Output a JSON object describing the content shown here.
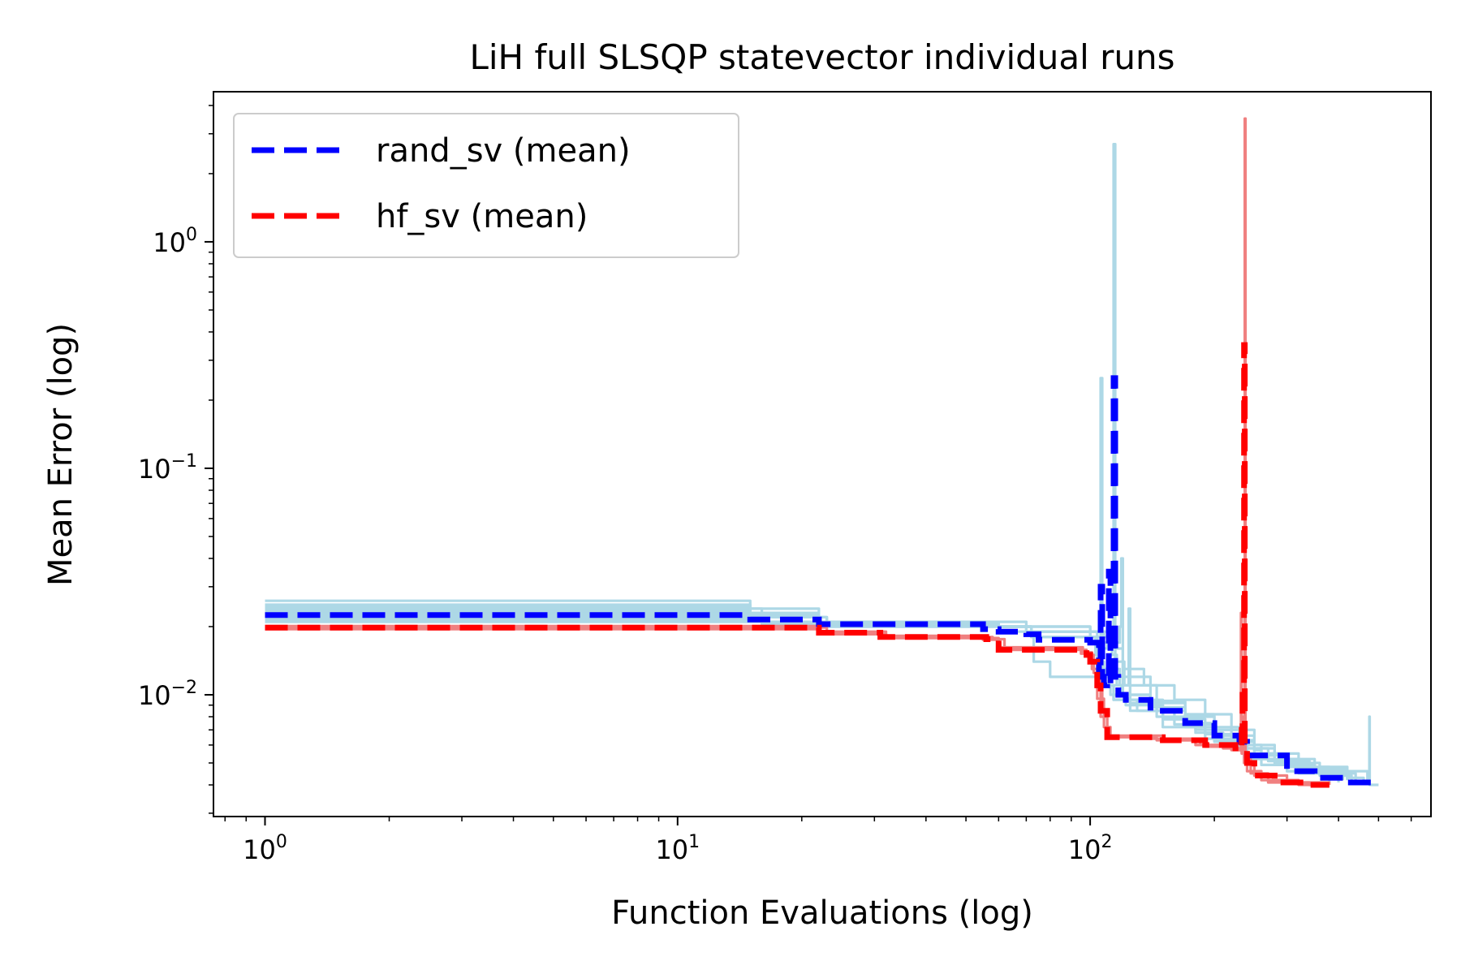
{
  "chart_data": {
    "type": "line",
    "title": "LiH full SLSQP statevector individual runs",
    "xlabel": "Function Evaluations (log)",
    "ylabel": "Mean Error (log)",
    "xscale": "log",
    "yscale": "log",
    "xlim": [
      0.75,
      670
    ],
    "ylim": [
      0.0029,
      4.6
    ],
    "x_ticks": [
      {
        "value": 1,
        "base": "10",
        "exp": "0"
      },
      {
        "value": 10,
        "base": "10",
        "exp": "1"
      },
      {
        "value": 100,
        "base": "10",
        "exp": "2"
      }
    ],
    "y_ticks": [
      {
        "value": 0.01,
        "base": "10",
        "exp": "−2"
      },
      {
        "value": 0.1,
        "base": "10",
        "exp": "−1"
      },
      {
        "value": 1,
        "base": "10",
        "exp": "0"
      }
    ],
    "legend": {
      "placement": "upper-left",
      "entries": [
        {
          "label": "rand_sv (mean)",
          "color": "#0000ff"
        },
        {
          "label": "hf_sv (mean)",
          "color": "#ff0000"
        }
      ]
    },
    "colors": {
      "rand_runs": "#add8e6",
      "hf_runs": "#f08080",
      "rand_mean": "#0000ff",
      "hf_mean": "#ff0000"
    },
    "rand_runs": [
      [
        [
          1,
          0.026
        ],
        [
          14,
          0.026
        ],
        [
          15,
          0.024
        ],
        [
          21,
          0.024
        ],
        [
          22,
          0.021
        ],
        [
          60,
          0.02
        ],
        [
          70,
          0.019
        ],
        [
          95,
          0.019
        ],
        [
          100,
          0.018
        ],
        [
          103,
          0.015
        ],
        [
          106,
          0.012
        ],
        [
          111,
          0.011
        ],
        [
          119,
          0.01
        ],
        [
          140,
          0.0085
        ],
        [
          170,
          0.0072
        ],
        [
          200,
          0.0062
        ],
        [
          240,
          0.0055
        ],
        [
          300,
          0.0046
        ],
        [
          370,
          0.0043
        ],
        [
          380,
          0.0041
        ]
      ],
      [
        [
          1,
          0.025
        ],
        [
          14,
          0.025
        ],
        [
          15,
          0.023
        ],
        [
          22,
          0.022
        ],
        [
          23,
          0.021
        ],
        [
          60,
          0.02
        ],
        [
          72,
          0.019
        ],
        [
          100,
          0.018
        ],
        [
          104,
          0.014
        ],
        [
          108,
          0.011
        ],
        [
          112,
          0.01
        ],
        [
          122,
          0.009
        ],
        [
          150,
          0.0078
        ],
        [
          180,
          0.0068
        ],
        [
          210,
          0.006
        ],
        [
          260,
          0.0052
        ],
        [
          320,
          0.0045
        ],
        [
          400,
          0.0041
        ]
      ],
      [
        [
          1,
          0.024
        ],
        [
          15,
          0.024
        ],
        [
          16,
          0.022
        ],
        [
          22,
          0.022
        ],
        [
          23,
          0.02
        ],
        [
          55,
          0.02
        ],
        [
          72,
          0.018
        ],
        [
          100,
          0.017
        ],
        [
          106,
          0.013
        ],
        [
          109,
          0.011
        ],
        [
          114,
          0.0095
        ],
        [
          125,
          0.0085
        ],
        [
          150,
          0.0072
        ],
        [
          190,
          0.0064
        ],
        [
          230,
          0.0058
        ],
        [
          270,
          0.0051
        ],
        [
          340,
          0.0046
        ],
        [
          410,
          0.0042
        ]
      ],
      [
        [
          1,
          0.023
        ],
        [
          14,
          0.023
        ],
        [
          15,
          0.022
        ],
        [
          22,
          0.021
        ],
        [
          23,
          0.02
        ],
        [
          70,
          0.019
        ],
        [
          73,
          0.014
        ],
        [
          80,
          0.012
        ],
        [
          100,
          0.012
        ],
        [
          108,
          0.011
        ],
        [
          114,
          0.0095
        ],
        [
          130,
          0.0085
        ],
        [
          160,
          0.0074
        ],
        [
          200,
          0.0063
        ],
        [
          250,
          0.0054
        ],
        [
          300,
          0.0048
        ],
        [
          380,
          0.0044
        ],
        [
          420,
          0.0042
        ]
      ],
      [
        [
          1,
          0.022
        ],
        [
          15,
          0.022
        ],
        [
          16,
          0.021
        ],
        [
          22,
          0.021
        ],
        [
          23,
          0.0205
        ],
        [
          60,
          0.02
        ],
        [
          72,
          0.019
        ],
        [
          100,
          0.018
        ],
        [
          107,
          0.016
        ],
        [
          110,
          0.02
        ],
        [
          113,
          0.015
        ],
        [
          116,
          0.011
        ],
        [
          125,
          0.0092
        ],
        [
          145,
          0.008
        ],
        [
          180,
          0.007
        ],
        [
          220,
          0.0062
        ],
        [
          250,
          0.0057
        ],
        [
          260,
          0.0049
        ],
        [
          350,
          0.0045
        ],
        [
          440,
          0.0042
        ]
      ],
      [
        [
          1,
          0.0215
        ],
        [
          15,
          0.0215
        ],
        [
          16,
          0.0205
        ],
        [
          60,
          0.02
        ],
        [
          72,
          0.019
        ],
        [
          104,
          0.017
        ],
        [
          106,
          0.25
        ],
        [
          107,
          0.013
        ],
        [
          112,
          0.012
        ],
        [
          120,
          0.01
        ],
        [
          140,
          0.0088
        ],
        [
          170,
          0.0075
        ],
        [
          200,
          0.0066
        ],
        [
          230,
          0.006
        ],
        [
          240,
          0.0052
        ],
        [
          300,
          0.0046
        ],
        [
          380,
          0.0042
        ]
      ],
      [
        [
          1,
          0.021
        ],
        [
          15,
          0.021
        ],
        [
          22,
          0.02
        ],
        [
          60,
          0.019
        ],
        [
          72,
          0.018
        ],
        [
          106,
          0.017
        ],
        [
          110,
          0.016
        ],
        [
          113,
          0.018
        ],
        [
          114,
          2.7
        ],
        [
          115,
          0.013
        ],
        [
          118,
          0.011
        ],
        [
          125,
          0.0095
        ],
        [
          150,
          0.0078
        ],
        [
          190,
          0.0067
        ],
        [
          230,
          0.0058
        ],
        [
          280,
          0.005
        ],
        [
          360,
          0.0044
        ],
        [
          430,
          0.0041
        ]
      ],
      [
        [
          1,
          0.0225
        ],
        [
          15,
          0.0225
        ],
        [
          22,
          0.021
        ],
        [
          60,
          0.02
        ],
        [
          100,
          0.019
        ],
        [
          112,
          0.017
        ],
        [
          118,
          0.02
        ],
        [
          119,
          0.04
        ],
        [
          120,
          0.012
        ],
        [
          125,
          0.011
        ],
        [
          145,
          0.0092
        ],
        [
          170,
          0.008
        ],
        [
          200,
          0.007
        ],
        [
          230,
          0.0063
        ],
        [
          240,
          0.0054
        ],
        [
          300,
          0.0048
        ],
        [
          420,
          0.0043
        ],
        [
          460,
          0.0041
        ]
      ],
      [
        [
          1,
          0.0235
        ],
        [
          14,
          0.0235
        ],
        [
          15,
          0.022
        ],
        [
          22,
          0.021
        ],
        [
          70,
          0.02
        ],
        [
          100,
          0.019
        ],
        [
          108,
          0.018
        ],
        [
          115,
          0.014
        ],
        [
          121,
          0.011
        ],
        [
          124,
          0.024
        ],
        [
          125,
          0.012
        ],
        [
          140,
          0.0094
        ],
        [
          170,
          0.0082
        ],
        [
          200,
          0.0072
        ],
        [
          230,
          0.0066
        ],
        [
          250,
          0.0055
        ],
        [
          320,
          0.0047
        ],
        [
          420,
          0.0042
        ]
      ],
      [
        [
          1,
          0.0245
        ],
        [
          14,
          0.0245
        ],
        [
          15,
          0.023
        ],
        [
          22,
          0.021
        ],
        [
          60,
          0.02
        ],
        [
          100,
          0.019
        ],
        [
          110,
          0.018
        ],
        [
          115,
          0.016
        ],
        [
          120,
          0.013
        ],
        [
          135,
          0.011
        ],
        [
          160,
          0.0095
        ],
        [
          190,
          0.0082
        ],
        [
          220,
          0.007
        ],
        [
          250,
          0.006
        ],
        [
          280,
          0.0052
        ],
        [
          350,
          0.0046
        ],
        [
          470,
          0.0042
        ],
        [
          475,
          0.008
        ],
        [
          476,
          0.004
        ],
        [
          500,
          0.004
        ]
      ]
    ],
    "hf_runs": [
      [
        [
          1,
          0.0195
        ],
        [
          20,
          0.0195
        ],
        [
          22,
          0.0185
        ],
        [
          30,
          0.0185
        ],
        [
          32,
          0.0178
        ],
        [
          55,
          0.0175
        ],
        [
          60,
          0.016
        ],
        [
          95,
          0.0152
        ],
        [
          100,
          0.014
        ],
        [
          105,
          0.011
        ],
        [
          107,
          0.0085
        ],
        [
          110,
          0.0065
        ],
        [
          140,
          0.0064
        ],
        [
          180,
          0.006
        ],
        [
          210,
          0.0058
        ],
        [
          230,
          0.0057
        ],
        [
          232,
          0.023
        ],
        [
          233,
          0.0055
        ],
        [
          240,
          0.0046
        ],
        [
          260,
          0.0042
        ],
        [
          320,
          0.004
        ],
        [
          380,
          0.004
        ]
      ],
      [
        [
          1,
          0.0198
        ],
        [
          20,
          0.0198
        ],
        [
          23,
          0.0188
        ],
        [
          30,
          0.0188
        ],
        [
          31,
          0.018
        ],
        [
          58,
          0.0176
        ],
        [
          62,
          0.0158
        ],
        [
          98,
          0.015
        ],
        [
          102,
          0.0125
        ],
        [
          106,
          0.008
        ],
        [
          110,
          0.0066
        ],
        [
          150,
          0.0063
        ],
        [
          190,
          0.0059
        ],
        [
          220,
          0.0057
        ],
        [
          236,
          0.0056
        ],
        [
          237,
          3.5
        ],
        [
          238,
          0.0052
        ],
        [
          245,
          0.0045
        ],
        [
          270,
          0.0041
        ],
        [
          340,
          0.004
        ],
        [
          380,
          0.004
        ]
      ],
      [
        [
          1,
          0.0201
        ],
        [
          20,
          0.0201
        ],
        [
          22,
          0.019
        ],
        [
          32,
          0.0182
        ],
        [
          56,
          0.0178
        ],
        [
          60,
          0.0162
        ],
        [
          96,
          0.0154
        ],
        [
          101,
          0.013
        ],
        [
          104,
          0.0096
        ],
        [
          108,
          0.0072
        ],
        [
          112,
          0.0065
        ],
        [
          145,
          0.0063
        ],
        [
          185,
          0.006
        ],
        [
          225,
          0.0058
        ],
        [
          233,
          0.0056
        ],
        [
          235,
          0.008
        ],
        [
          236,
          0.005
        ],
        [
          250,
          0.0044
        ],
        [
          300,
          0.0041
        ],
        [
          380,
          0.004
        ]
      ]
    ],
    "rand_mean": [
      [
        1,
        0.0225
      ],
      [
        14,
        0.0225
      ],
      [
        15,
        0.0215
      ],
      [
        21,
        0.0215
      ],
      [
        22,
        0.0205
      ],
      [
        55,
        0.0195
      ],
      [
        60,
        0.019
      ],
      [
        70,
        0.0185
      ],
      [
        75,
        0.0175
      ],
      [
        100,
        0.017
      ],
      [
        104,
        0.017
      ],
      [
        105,
        0.012
      ],
      [
        106,
        0.03
      ],
      [
        107,
        0.012
      ],
      [
        108,
        0.011
      ],
      [
        110,
        0.012
      ],
      [
        111,
        0.035
      ],
      [
        112,
        0.011
      ],
      [
        113,
        0.012
      ],
      [
        114,
        0.25
      ],
      [
        115,
        0.012
      ],
      [
        117,
        0.01
      ],
      [
        122,
        0.0095
      ],
      [
        140,
        0.0085
      ],
      [
        170,
        0.0075
      ],
      [
        200,
        0.0066
      ],
      [
        230,
        0.0062
      ],
      [
        240,
        0.0054
      ],
      [
        300,
        0.0046
      ],
      [
        350,
        0.0043
      ],
      [
        420,
        0.0041
      ],
      [
        480,
        0.0041
      ]
    ],
    "hf_mean": [
      [
        1,
        0.0198
      ],
      [
        20,
        0.0198
      ],
      [
        22,
        0.0188
      ],
      [
        30,
        0.0188
      ],
      [
        31,
        0.018
      ],
      [
        56,
        0.0176
      ],
      [
        60,
        0.0158
      ],
      [
        98,
        0.015
      ],
      [
        100,
        0.014
      ],
      [
        104,
        0.011
      ],
      [
        106,
        0.0085
      ],
      [
        110,
        0.0065
      ],
      [
        150,
        0.0063
      ],
      [
        190,
        0.006
      ],
      [
        225,
        0.0058
      ],
      [
        230,
        0.0057
      ],
      [
        233,
        0.007
      ],
      [
        234,
        0.01
      ],
      [
        236,
        0.35
      ],
      [
        237,
        0.006
      ],
      [
        240,
        0.005
      ],
      [
        250,
        0.0044
      ],
      [
        280,
        0.0041
      ],
      [
        330,
        0.004
      ],
      [
        380,
        0.004
      ]
    ]
  }
}
